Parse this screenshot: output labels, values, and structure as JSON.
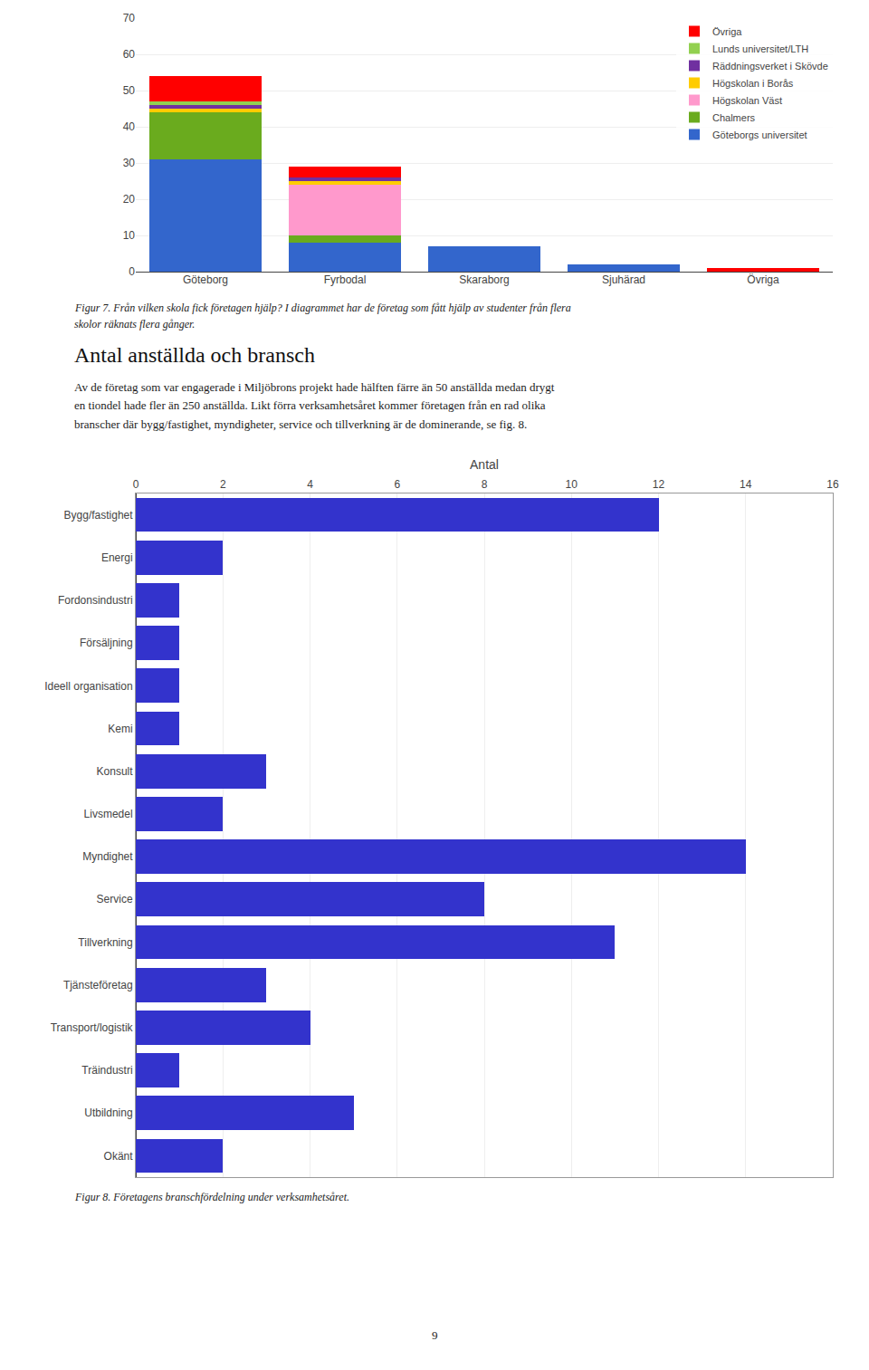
{
  "chart_data": [
    {
      "type": "bar",
      "stacked": true,
      "categories": [
        "Göteborg",
        "Fyrbodal",
        "Skaraborg",
        "Sjuhärad",
        "Övriga"
      ],
      "series": [
        {
          "name": "Göteborgs universitet",
          "color": "#3366CC",
          "values": [
            31,
            8,
            7,
            2,
            0
          ]
        },
        {
          "name": "Chalmers",
          "color": "#6AAB1E",
          "values": [
            13,
            2,
            0,
            0,
            0
          ]
        },
        {
          "name": "Högskolan Väst",
          "color": "#FF99CC",
          "values": [
            0,
            14,
            0,
            0,
            0
          ]
        },
        {
          "name": "Högskolan i Borås",
          "color": "#FFCC00",
          "values": [
            1,
            1,
            0,
            0,
            0
          ]
        },
        {
          "name": "Räddningsverket i Skövde",
          "color": "#7030A0",
          "values": [
            1,
            1,
            0,
            0,
            0
          ]
        },
        {
          "name": "Lunds universitet/LTH",
          "color": "#92D050",
          "values": [
            1,
            0,
            0,
            0,
            0
          ]
        },
        {
          "name": "Övriga",
          "color": "#FF0000",
          "values": [
            7,
            3,
            0,
            0,
            1
          ]
        }
      ],
      "ylim": [
        0,
        70
      ],
      "yticks": [
        0,
        10,
        20,
        30,
        40,
        50,
        60,
        70
      ],
      "grid": true,
      "legend": "upper right",
      "annotations": [
        "Figur 7. Från vilken skola fick företagen hjälp? I diagrammet har de företag som fått hjälp av studenter från flera",
        "skolor räknats flera gånger."
      ]
    },
    {
      "type": "bar",
      "orientation": "horizontal",
      "title": "Antal anställda och bransch",
      "subtitle": [
        "Av de företag som var engagerade i Miljöbrons projekt hade hälften färre än 50 anställda medan drygt",
        "en tiondel hade fler än 250 anställda. Likt förra verksamhetsåret kommer företagen från en rad olika",
        "branscher där bygg/fastighet, myndigheter, service och tillverkning är de dominerande, se fig. 8."
      ],
      "categories": [
        "Bygg/fastighet",
        "Energi",
        "Fordonsindustri",
        "Försäljning",
        "Ideell organisation",
        "Kemi",
        "Konsult",
        "Livsmedel",
        "Myndighet",
        "Service",
        "Tillverkning",
        "Tjänsteföretag",
        "Transport/logistik",
        "Träindustri",
        "Utbildning",
        "Okänt"
      ],
      "values": [
        12,
        2,
        1,
        1,
        1,
        1,
        3,
        2,
        14,
        8,
        11,
        3,
        4,
        1,
        5,
        2
      ],
      "color": "#3333CC",
      "xlabel": "Antal",
      "xlim": [
        0,
        16
      ],
      "xticks": [
        0,
        2,
        4,
        6,
        8,
        10,
        12,
        14,
        16
      ],
      "grid": true,
      "annotations": [
        "Figur 8. Företagens branschfördelning under verksamhetsåret.",
        "9"
      ]
    }
  ]
}
